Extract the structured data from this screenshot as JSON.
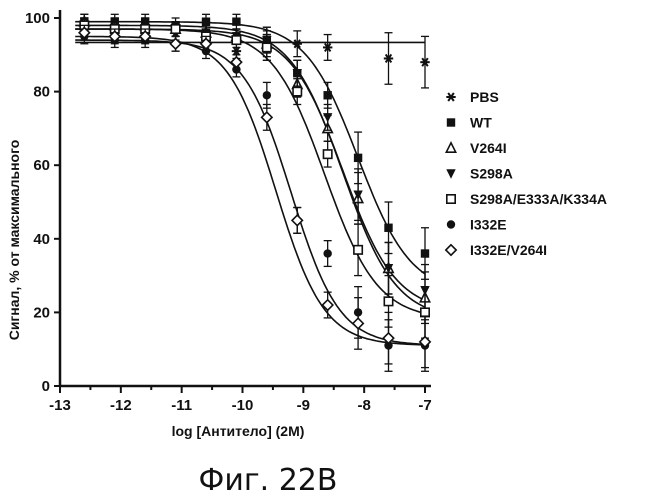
{
  "chart_data": {
    "type": "scatter",
    "title": "",
    "xlabel": "log [Антитело] (2M)",
    "ylabel": "Сигнал, % от максимального",
    "xlim": [
      -13,
      -7
    ],
    "ylim": [
      0,
      100
    ],
    "xticks": [
      "-13",
      "-12",
      "-11",
      "-10",
      "-9",
      "-8",
      "-7"
    ],
    "yticks": [
      "0",
      "20",
      "40",
      "60",
      "80",
      "100"
    ],
    "grid": false,
    "legend_position": "right",
    "caption": "Фиг. 22B",
    "x": [
      -12.6,
      -12.1,
      -11.6,
      -11.1,
      -10.6,
      -10.1,
      -9.6,
      -9.1,
      -8.6,
      -8.1,
      -7.6,
      -7.0
    ],
    "series": [
      {
        "name": "PBS",
        "marker": "asterisk",
        "values": [
          98,
          98,
          97,
          96,
          93,
          91,
          92,
          93,
          92,
          null,
          89,
          88
        ],
        "curve": null
      },
      {
        "name": "WT",
        "marker": "filled-square",
        "values": [
          99,
          99,
          99,
          98,
          99,
          99,
          94,
          85,
          79,
          62,
          43,
          36
        ],
        "curve": {
          "top": 99,
          "bottom": 25,
          "ec50": -8.1,
          "hill": 1.0
        }
      },
      {
        "name": "V264I",
        "marker": "open-triangle",
        "values": [
          99,
          98,
          98,
          97,
          96,
          95,
          93,
          82,
          70,
          51,
          32,
          24
        ],
        "curve": {
          "top": 98,
          "bottom": 18,
          "ec50": -8.35,
          "hill": 1.0
        }
      },
      {
        "name": "S298A",
        "marker": "filled-triangle-down",
        "values": [
          98,
          97,
          98,
          97,
          96,
          95,
          94,
          85,
          73,
          52,
          32,
          26
        ],
        "curve": {
          "top": 97,
          "bottom": 20,
          "ec50": -8.35,
          "hill": 1.0
        }
      },
      {
        "name": "S298A/E333A/K334A",
        "marker": "open-square",
        "values": [
          98,
          97,
          97,
          97,
          95,
          94,
          92,
          80,
          63,
          37,
          23,
          20
        ],
        "curve": {
          "top": 97,
          "bottom": 18,
          "ec50": -8.65,
          "hill": 1.0
        }
      },
      {
        "name": "I332E",
        "marker": "filled-circle",
        "values": [
          95,
          94,
          94,
          93,
          91,
          86,
          79,
          45,
          36,
          20,
          11,
          11
        ],
        "curve": {
          "top": 94,
          "bottom": 11,
          "ec50": -9.2,
          "hill": 1.1
        }
      },
      {
        "name": "I332E/V264I",
        "marker": "open-diamond",
        "values": [
          96,
          95,
          95,
          93,
          93,
          88,
          73,
          45,
          22,
          17,
          13,
          12
        ],
        "curve": {
          "top": 95,
          "bottom": 11,
          "ec50": -9.45,
          "hill": 1.1
        }
      }
    ]
  }
}
